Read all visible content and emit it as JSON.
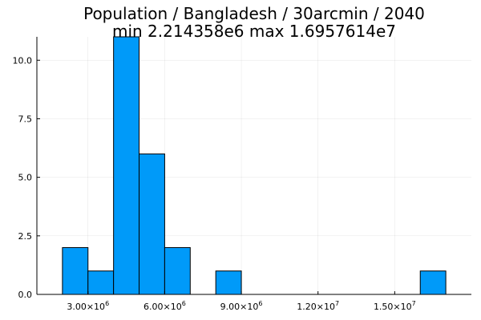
{
  "chart_data": {
    "type": "bar",
    "title": "Population / Bangladesh / 30arcmin / 2040",
    "subtitle": "min 2.214358e6  max 1.6957614e7",
    "xlabel": "",
    "ylabel": "",
    "xlim": [
      1000000,
      18000000
    ],
    "ylim": [
      0,
      11
    ],
    "grid": true,
    "legend": "none",
    "bar_color": "#009af9",
    "bins": [
      {
        "start": 2000000,
        "end": 3000000,
        "count": 2
      },
      {
        "start": 3000000,
        "end": 4000000,
        "count": 1
      },
      {
        "start": 4000000,
        "end": 5000000,
        "count": 11
      },
      {
        "start": 5000000,
        "end": 6000000,
        "count": 6
      },
      {
        "start": 6000000,
        "end": 7000000,
        "count": 2
      },
      {
        "start": 8000000,
        "end": 9000000,
        "count": 1
      },
      {
        "start": 16000000,
        "end": 17000000,
        "count": 1
      }
    ],
    "x_ticks": [
      {
        "value": 3000000,
        "mantissa": "3.00×10",
        "exp": "6"
      },
      {
        "value": 6000000,
        "mantissa": "6.00×10",
        "exp": "6"
      },
      {
        "value": 9000000,
        "mantissa": "9.00×10",
        "exp": "6"
      },
      {
        "value": 12000000,
        "mantissa": "1.20×10",
        "exp": "7"
      },
      {
        "value": 15000000,
        "mantissa": "1.50×10",
        "exp": "7"
      }
    ],
    "y_ticks": [
      {
        "value": 0,
        "label": "0.0"
      },
      {
        "value": 2.5,
        "label": "2.5"
      },
      {
        "value": 5,
        "label": "5.0"
      },
      {
        "value": 7.5,
        "label": "7.5"
      },
      {
        "value": 10,
        "label": "10.0"
      }
    ]
  }
}
